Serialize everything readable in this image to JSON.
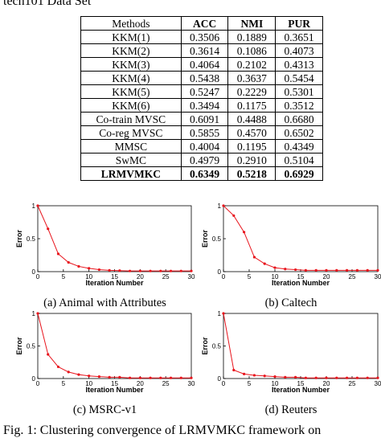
{
  "header": {
    "text": "tech101 Data Set"
  },
  "table": {
    "columns": [
      "Methods",
      "ACC",
      "NMI",
      "PUR"
    ],
    "rows": [
      [
        "KKM(1)",
        "0.3506",
        "0.1889",
        "0.3651"
      ],
      [
        "KKM(2)",
        "0.3614",
        "0.1086",
        "0.4073"
      ],
      [
        "KKM(3)",
        "0.4064",
        "0.2102",
        "0.4313"
      ],
      [
        "KKM(4)",
        "0.5438",
        "0.3637",
        "0.5454"
      ],
      [
        "KKM(5)",
        "0.5247",
        "0.2229",
        "0.5301"
      ],
      [
        "KKM(6)",
        "0.3494",
        "0.1175",
        "0.3512"
      ],
      [
        "Co-train MVSC",
        "0.6091",
        "0.4488",
        "0.6680"
      ],
      [
        "Co-reg MVSC",
        "0.5855",
        "0.4570",
        "0.6502"
      ],
      [
        "MMSC",
        "0.4004",
        "0.1195",
        "0.4349"
      ],
      [
        "SwMC",
        "0.4979",
        "0.2910",
        "0.5104"
      ],
      [
        "LRMVMKC",
        "0.6349",
        "0.5218",
        "0.6929"
      ]
    ]
  },
  "chart_data": [
    {
      "type": "line",
      "caption": "(a) Animal with Attributes",
      "xlabel": "Iteration Number",
      "ylabel": "Error",
      "color": "#e8141c",
      "x": [
        0,
        2,
        4,
        6,
        8,
        10,
        12,
        14,
        16,
        18,
        20,
        22,
        24,
        26,
        28,
        30
      ],
      "values": [
        1,
        0.65,
        0.27,
        0.14,
        0.08,
        0.05,
        0.03,
        0.02,
        0.015,
        0.01,
        0.01,
        0.01,
        0.01,
        0.01,
        0.01,
        0.01
      ],
      "xlim": [
        0,
        30
      ],
      "xticks": [
        0,
        5,
        10,
        15,
        20,
        25,
        30
      ],
      "ylim": [
        0,
        1
      ],
      "yticks": [
        0,
        0.5,
        1
      ]
    },
    {
      "type": "line",
      "caption": "(b) Caltech",
      "xlabel": "Iteration Number",
      "ylabel": "Error",
      "color": "#e8141c",
      "x": [
        0,
        2,
        4,
        6,
        8,
        10,
        12,
        14,
        16,
        18,
        20,
        22,
        24,
        26,
        28,
        30
      ],
      "values": [
        1,
        0.85,
        0.6,
        0.22,
        0.12,
        0.06,
        0.04,
        0.03,
        0.02,
        0.02,
        0.02,
        0.02,
        0.02,
        0.02,
        0.02,
        0.02
      ],
      "xlim": [
        0,
        30
      ],
      "xticks": [
        0,
        5,
        10,
        15,
        20,
        25,
        30
      ],
      "ylim": [
        0,
        1
      ],
      "yticks": [
        0,
        0.5,
        1
      ]
    },
    {
      "type": "line",
      "caption": "(c) MSRC-v1",
      "xlabel": "Iteration Number",
      "ylabel": "Error",
      "color": "#e8141c",
      "x": [
        0,
        2,
        4,
        6,
        8,
        10,
        12,
        14,
        16,
        18,
        20,
        22,
        24,
        26,
        28,
        30
      ],
      "values": [
        1,
        0.37,
        0.18,
        0.1,
        0.06,
        0.04,
        0.03,
        0.02,
        0.02,
        0.01,
        0.01,
        0.01,
        0.01,
        0.01,
        0.01,
        0.01
      ],
      "xlim": [
        0,
        30
      ],
      "xticks": [
        0,
        5,
        10,
        15,
        20,
        25,
        30
      ],
      "ylim": [
        0,
        1
      ],
      "yticks": [
        0,
        0.5,
        1
      ]
    },
    {
      "type": "line",
      "caption": "(d) Reuters",
      "xlabel": "Iteration Number",
      "ylabel": "Error",
      "color": "#e8141c",
      "x": [
        0,
        2,
        4,
        6,
        8,
        10,
        12,
        14,
        16,
        18,
        20,
        22,
        24,
        26,
        28,
        30
      ],
      "values": [
        1,
        0.13,
        0.07,
        0.05,
        0.04,
        0.03,
        0.02,
        0.02,
        0.01,
        0.01,
        0.01,
        0.01,
        0.01,
        0.01,
        0.01,
        0.01
      ],
      "xlim": [
        0,
        30
      ],
      "xticks": [
        0,
        5,
        10,
        15,
        20,
        25,
        30
      ],
      "ylim": [
        0,
        1
      ],
      "yticks": [
        0,
        0.5,
        1
      ]
    }
  ],
  "footer": {
    "text": "Fig. 1: Clustering convergence of LRMVMKC framework on"
  }
}
